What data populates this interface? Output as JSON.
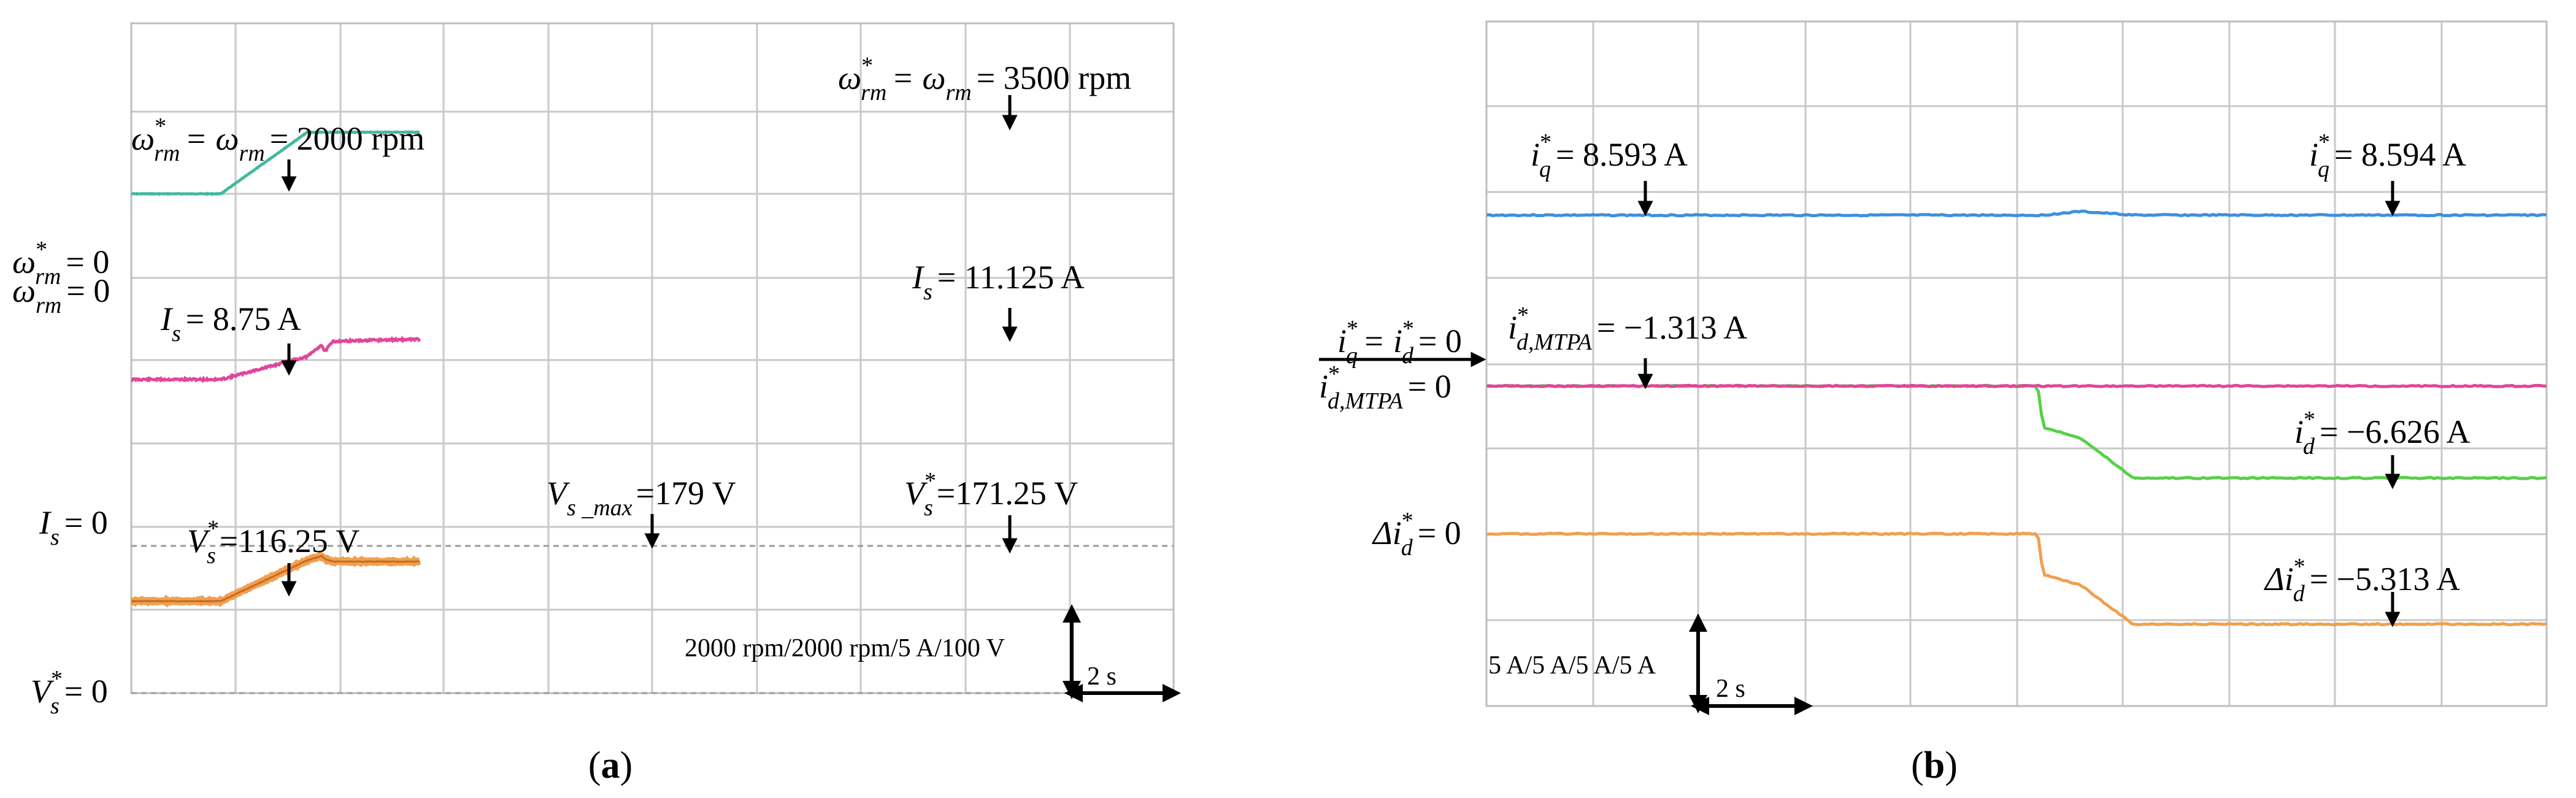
{
  "chart_data": [
    {
      "type": "line",
      "panel_label": "a",
      "time_scale_label": "2 s",
      "amplitude_scale_label": "2000 rpm/2000 rpm/5 A/100 V",
      "grid": true,
      "colors": {
        "speed": "#3fb7a8",
        "speed_ref": "#7bc96f",
        "current": "#e0479a",
        "voltage": "#f0a050",
        "voltage_limit": "#9a9a9a",
        "zero_line": "#9a9a9a"
      },
      "x": [
        0,
        3.1,
        6.1,
        6.6,
        6.7,
        7.0,
        10
      ],
      "series": [
        {
          "key": "speed",
          "values": [
            2000,
            2000,
            3500,
            3500,
            3500,
            3500,
            3500
          ]
        },
        {
          "key": "current",
          "values": [
            8.75,
            8.75,
            10.1,
            10.8,
            10.4,
            11.0,
            11.125
          ]
        },
        {
          "key": "voltage",
          "values": [
            116.25,
            116.25,
            173,
            179,
            175,
            171.25,
            171.25
          ]
        }
      ],
      "zero_labels": [
        {
          "sym": "ω",
          "sub": "rm",
          "sup": "*",
          "text": "= 0"
        },
        {
          "sym": "ω",
          "sub": "rm",
          "sup": "",
          "text": "= 0"
        },
        {
          "sym": "I",
          "sub": "s",
          "sup": "",
          "text": "= 0"
        },
        {
          "sym": "V",
          "sub": "s",
          "sup": "*",
          "text": "= 0"
        }
      ],
      "annotations": [
        {
          "sym": "ω",
          "sup": "*",
          "sub": "rm",
          "mid": "= ω",
          "sub2": "rm",
          "text": "= 2000 rpm"
        },
        {
          "sym": "ω",
          "sup": "*",
          "sub": "rm",
          "mid": "= ω",
          "sub2": "rm",
          "text": "= 3500 rpm"
        },
        {
          "sym": "I",
          "sup": "",
          "sub": "s",
          "mid": "",
          "sub2": "",
          "text": "= 8.75 A"
        },
        {
          "sym": "I",
          "sup": "",
          "sub": "s",
          "mid": "",
          "sub2": "",
          "text": "= 11.125 A"
        },
        {
          "sym": "V",
          "sup": "*",
          "sub": "s",
          "mid": "",
          "sub2": "",
          "text": "=116.25 V"
        },
        {
          "sym": "V",
          "sup": "",
          "sub": "s _max",
          "mid": "",
          "sub2": "",
          "text": "=179 V"
        },
        {
          "sym": "V",
          "sup": "*",
          "sub": "s",
          "mid": "",
          "sub2": "",
          "text": "=171.25 V"
        }
      ]
    },
    {
      "type": "line",
      "panel_label": "b",
      "time_scale_label": "2 s",
      "amplitude_scale_label": "5 A/5 A/5 A/5 A",
      "grid": true,
      "colors": {
        "iq": "#3d8fe0",
        "id": "#e0479a",
        "id_ref": "#58d048",
        "delta_id": "#f0a050"
      },
      "x": [
        0,
        5.2,
        5.25,
        5.6,
        6.1,
        10
      ],
      "series": [
        {
          "key": "iq",
          "values": [
            8.593,
            8.593,
            8.593,
            8.65,
            8.594,
            8.594
          ]
        },
        {
          "key": "id",
          "values": [
            -1.313,
            -1.313,
            -1.313,
            -1.313,
            -1.313,
            -1.313
          ]
        },
        {
          "key": "id_ref",
          "values": [
            -1.313,
            -1.313,
            -3.7,
            -4.3,
            -6.626,
            -6.626
          ]
        },
        {
          "key": "delta_id",
          "values": [
            0,
            0,
            -2.4,
            -3.0,
            -5.313,
            -5.313
          ]
        }
      ],
      "zero_labels": [
        {
          "sym": "i",
          "sub": "q",
          "sup": "*",
          "text": "= i",
          "sub2": "d",
          "sup2": "*",
          "tail": "= 0"
        },
        {
          "sym": "i",
          "sub": "d,MTPA",
          "sup": "*",
          "text": "= 0",
          "sub2": "",
          "sup2": "",
          "tail": ""
        },
        {
          "sym": "Δi",
          "sub": "d",
          "sup": "*",
          "text": "= 0",
          "sub2": "",
          "sup2": "",
          "tail": ""
        }
      ],
      "annotations": [
        {
          "sym": "i",
          "sup": "*",
          "sub": "q",
          "text": "= 8.593 A"
        },
        {
          "sym": "i",
          "sup": "*",
          "sub": "q",
          "text": "= 8.594 A"
        },
        {
          "sym": "i",
          "sup": "*",
          "sub": "d,MTPA",
          "text": "= −1.313 A"
        },
        {
          "sym": "i",
          "sup": "*",
          "sub": "d",
          "text": "= −6.626 A"
        },
        {
          "sym": "Δi",
          "sup": "*",
          "sub": "d",
          "text": "= −5.313 A"
        }
      ]
    }
  ]
}
